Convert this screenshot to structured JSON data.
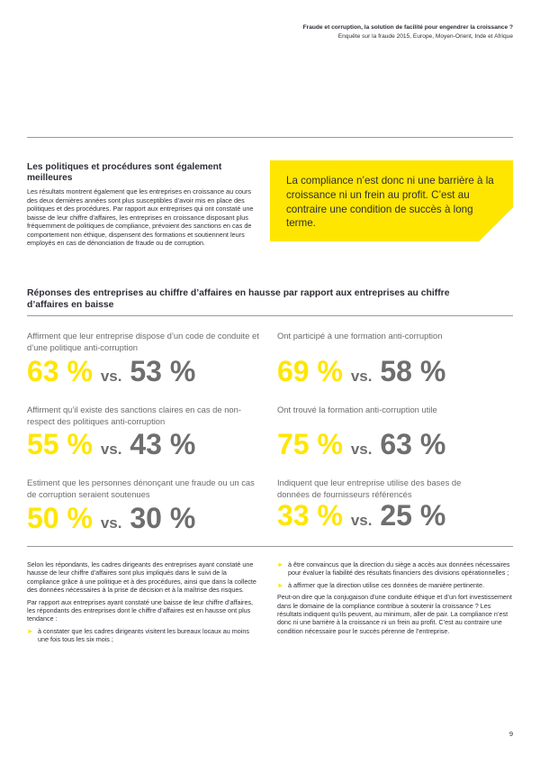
{
  "header": {
    "line1": "Fraude et corruption, la solution de facilité pour engendrer la croissance ?",
    "line2": "Enquête sur la fraude 2015, Europe, Moyen-Orient, Inde et Afrique"
  },
  "section": {
    "title": "Les politiques et procédures sont également meilleures",
    "body": "Les résultats montrent également que les entreprises en croissance au cours des deux dernières années sont plus susceptibles d’avoir mis en place des politiques et des procédures. Par rapport aux entreprises qui ont constaté une baisse de leur chiffre d’affaires, les entreprises en croissance disposant plus fréquemment de politiques de compliance, prévoient des sanctions en cas de comportement non éthique, dispensent des formations et soutiennent leurs employés en cas de dénonciation de fraude ou de corruption."
  },
  "callout": {
    "text": "La compliance n’est donc ni une barrière à la croissance ni un frein au profit. C’est au contraire une condition de succès à long terme."
  },
  "responses": {
    "title": "Réponses des entreprises au chiffre d’affaires en hausse par rapport aux entreprises au chiffre d’affaires en baisse",
    "vs": "vs.",
    "stats": [
      {
        "label": "Affirment que leur entreprise dispose d’un code de conduite et d’une politique anti-corruption",
        "a": "63 %",
        "b": "53 %"
      },
      {
        "label": "Ont participé à une formation anti-corruption",
        "a": "69 %",
        "b": "58 %"
      },
      {
        "label": "Affirment qu’il existe des sanctions claires en cas de non-respect des politiques anti-corruption",
        "a": "55 %",
        "b": "43 %"
      },
      {
        "label": "Ont trouvé la formation anti-corruption utile",
        "a": "75 %",
        "b": "63 %"
      },
      {
        "label": "Estiment que les personnes dénonçant une fraude ou un cas de corruption seraient soutenues",
        "a": "50 %",
        "b": "30 %"
      },
      {
        "label": "Indiquent que leur entreprise utilise des bases de données de fournisseurs référencés",
        "a": "33 %",
        "b": "25 %"
      }
    ]
  },
  "bottom": {
    "left_p1": "Selon les répondants, les cadres dirigeants des entreprises ayant constaté une hausse de leur chiffre d’affaires sont plus impliqués dans le suivi de la compliance grâce à une politique et à des procédures, ainsi que dans la collecte des données nécessaires à la prise de décision et à la maîtrise des risques.",
    "left_p2": "Par rapport aux entreprises ayant constaté une baisse de leur chiffre d’affaires, les répondants des entreprises dont le chiffre d’affaires est en hausse ont plus tendance :",
    "left_b1": "à constater que les cadres dirigeants visitent les bureaux locaux au moins une fois tous les six mois ;",
    "right_b1": "à être convaincus que la direction du siège a accès aux données nécessaires pour évaluer la fiabilité des résultats financiers des divisions opérationnelles ;",
    "right_b2": "à affirmer que la direction utilise ces données de manière pertinente.",
    "right_p": "Peut-on dire que la conjugaison d’une conduite éthique et d’un fort investissement dans le domaine de la compliance contribue à soutenir la croissance ? Les résultats indiquent qu’ils peuvent, au minimum, aller de pair. La compliance n’est donc ni une barrière à la croissance ni un frein au profit. C’est au contraire une condition nécessaire pour le succès pérenne de l’entreprise.",
    "arrow": "►"
  },
  "page_number": "9",
  "colors": {
    "accent": "#ffe600",
    "grey": "#6e6e6e",
    "text": "#2e2e38"
  }
}
